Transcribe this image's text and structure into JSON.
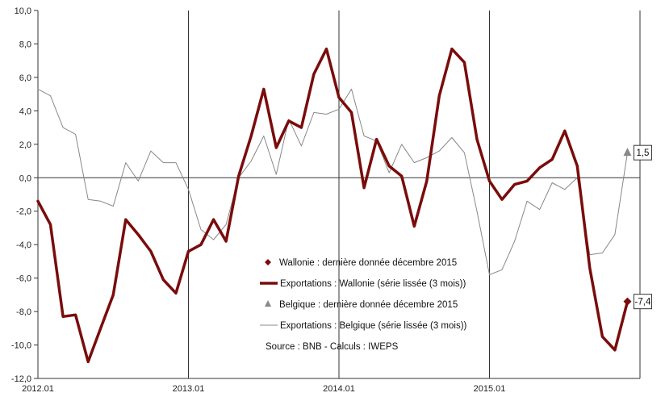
{
  "chart_data": {
    "type": "line",
    "title": "",
    "xlabel": "",
    "ylabel": "",
    "ylim": [
      -12,
      10
    ],
    "yticks": [
      "10,0",
      "8,0",
      "6,0",
      "4,0",
      "2,0",
      "0,0",
      "-2,0",
      "-4,0",
      "-6,0",
      "-8,0",
      "-10,0",
      "-12,0"
    ],
    "xticks": [
      "2012.01",
      "2013.01",
      "2014.01",
      "2015.01"
    ],
    "grid": "vertical lines at each year start",
    "x_index_range": [
      0,
      47
    ],
    "series": [
      {
        "name": "Exportations : Wallonie (série lissée (3 mois))",
        "color": "#7a0c0c",
        "style": "thick-line",
        "values": [
          -1.4,
          -2.8,
          -8.3,
          -8.2,
          -11.0,
          -9.0,
          -7.0,
          -2.5,
          -3.4,
          -4.4,
          -6.1,
          -6.9,
          -4.4,
          -4.0,
          -2.5,
          -3.8,
          0.1,
          2.5,
          5.3,
          1.8,
          3.4,
          3.0,
          6.2,
          7.7,
          4.8,
          3.9,
          -0.6,
          2.3,
          0.7,
          0.1,
          -2.9,
          -0.2,
          4.9,
          7.7,
          6.9,
          2.3,
          -0.2,
          -1.3,
          -0.4,
          -0.2,
          0.6,
          1.1,
          2.8,
          0.7,
          -5.4,
          -9.5,
          -10.3,
          -7.4
        ]
      },
      {
        "name": "Exportations : Belgique (série lissée (3 mois))",
        "color": "#888888",
        "style": "thin-line",
        "values": [
          5.3,
          4.9,
          3.0,
          2.6,
          -1.3,
          -1.4,
          -1.7,
          0.9,
          -0.2,
          1.6,
          0.9,
          0.9,
          -0.7,
          -3.1,
          -3.7,
          -2.8,
          0.0,
          1.0,
          2.5,
          0.2,
          3.5,
          1.9,
          3.9,
          3.8,
          4.1,
          5.3,
          2.5,
          2.2,
          0.3,
          2.0,
          0.9,
          1.2,
          1.6,
          2.4,
          1.5,
          -2.0,
          -5.8,
          -5.5,
          -3.8,
          -1.4,
          -1.9,
          -0.3,
          -0.7,
          0.0,
          -4.6,
          -4.5,
          -3.4,
          1.5
        ]
      }
    ],
    "markers": [
      {
        "name": "Wallonie : dernière donnée décembre 2015",
        "shape": "diamond",
        "color": "#7a0c0c",
        "x_index": 47,
        "value": -7.4,
        "label": "-7,4"
      },
      {
        "name": "Belgique : dernière donnée décembre 2015",
        "shape": "triangle",
        "color": "#888888",
        "x_index": 47,
        "value": 1.5,
        "label": "1,5"
      }
    ],
    "legend": {
      "placement": "center-bottom",
      "entries": [
        "Wallonie : dernière donnée décembre 2015",
        "Exportations : Wallonie (série lissée (3 mois))",
        "Belgique : dernière donnée décembre 2015",
        "Exportations : Belgique (série lissée (3 mois))"
      ],
      "source": "Source : BNB - Calculs : IWEPS"
    }
  }
}
